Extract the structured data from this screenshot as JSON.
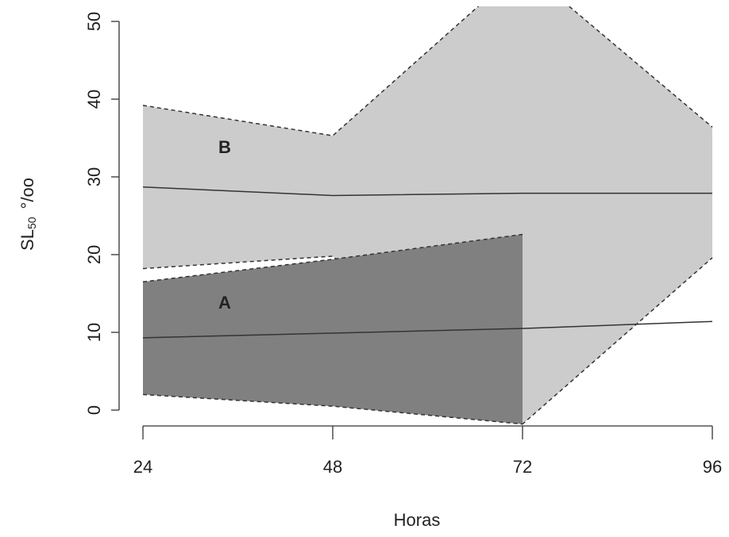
{
  "chart_data": {
    "type": "band",
    "x_label": "Horas",
    "y_label": "SL",
    "y_label_sub": "50",
    "y_label_unit": "°/oo",
    "x": [
      24,
      48,
      72,
      96
    ],
    "xlim": [
      24,
      96
    ],
    "xticks": [
      24,
      48,
      72,
      96
    ],
    "ylim": [
      -2,
      52
    ],
    "yticks": [
      0,
      10,
      20,
      30,
      40,
      50
    ],
    "series": [
      {
        "name": "B",
        "color": "#cccccc",
        "values": [
          28.7,
          27.6,
          27.9,
          27.9
        ],
        "lower": [
          18.2,
          19.8,
          -1.8,
          19.6
        ],
        "upper": [
          39.2,
          35.3,
          57,
          36.4
        ]
      },
      {
        "name": "A",
        "color": "#808080",
        "values": [
          9.3,
          9.9,
          10.5,
          11.4
        ],
        "lower": [
          2.0,
          0.5,
          -1.8,
          null
        ],
        "upper": [
          16.5,
          19.4,
          22.6,
          null
        ]
      }
    ]
  }
}
